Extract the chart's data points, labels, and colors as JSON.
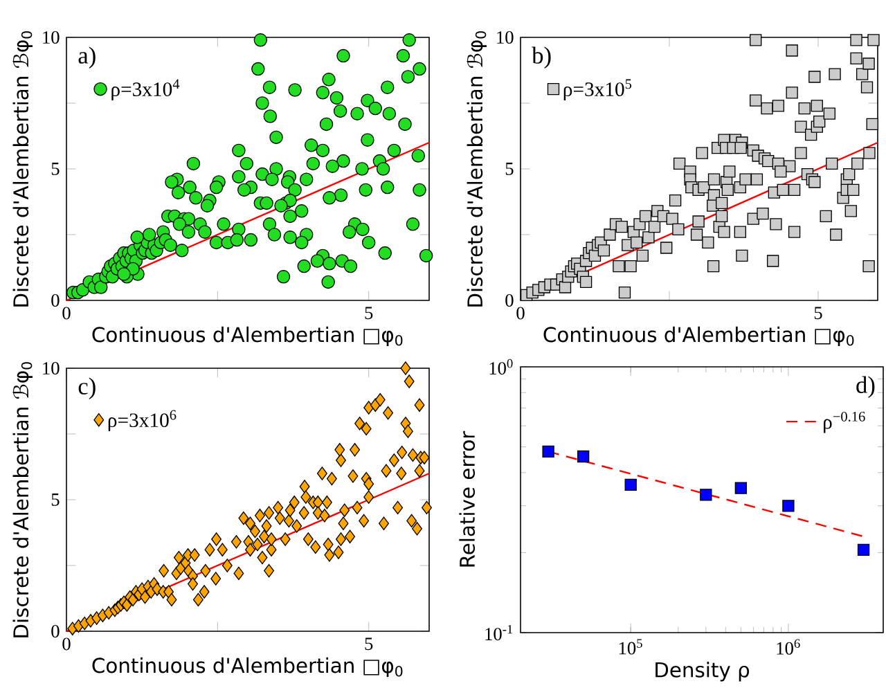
{
  "chart_data": [
    {
      "type": "scatter",
      "xlabel": "Continuous d'Alembertian □φ$_{0}$",
      "ylabel": "Discrete d'Alembertian ℬφ$_{0}$",
      "xlim": [
        0,
        6
      ],
      "ylim": [
        0,
        10
      ],
      "xticks": [
        0,
        {
          "value": 2.5,
          "label": null
        },
        5
      ],
      "yticks": [
        0,
        {
          "value": 2.5,
          "label": null
        },
        5,
        {
          "value": 7.5,
          "label": null
        },
        10
      ],
      "legend": "top left",
      "annotations": [
        "a)"
      ],
      "series": [
        {
          "name": "ρ=3x10$^{4}$",
          "marker": "circle",
          "color": "#22dd22",
          "x": [
            0.11,
            0.19,
            0.27,
            0.38,
            0.46,
            0.53,
            0.57,
            0.65,
            0.69,
            0.73,
            0.76,
            0.8,
            0.84,
            0.88,
            0.92,
            0.95,
            0.99,
            1.03,
            1.07,
            1.11,
            1.15,
            1.18,
            1.22,
            1.26,
            1.3,
            1.34,
            1.41,
            1.45,
            1.49,
            1.56,
            4.58,
            3.17,
            3.21,
            5.67,
            5.57,
            5.84,
            5.65,
            5.31,
            4.34,
            4.24,
            3.78,
            3.36,
            3.24,
            4.47,
            4.53,
            4.81,
            4.98,
            5.11,
            5.34,
            5.6,
            4.3,
            3.37,
            3.47,
            4.98,
            4.05,
            4.24,
            5.42,
            5.82,
            2.85,
            2.1,
            2.98,
            4.58,
            4.08,
            4.4,
            5.18,
            5.24,
            4.89,
            3.47,
            3.69,
            3.24,
            3.97,
            2.85,
            1.83,
            1.74,
            2.04,
            2.52,
            2.48,
            3.05,
            2.94,
            3.4,
            3.66,
            3.78,
            4.54,
            4.95,
            5.31,
            5.84,
            1.85,
            2.14,
            2.37,
            2.33,
            3.63,
            3.21,
            3.31,
            3.7,
            4.35,
            3.55,
            3.89,
            3.7,
            1.68,
            1.79,
            1.95,
            2.02,
            1.87,
            2.21,
            2.6,
            3.36,
            4.77,
            5.73,
            2.02,
            2.29,
            1.6,
            2.85,
            3.44,
            3.97,
            4.68,
            4.9,
            1.37,
            3.7,
            1.64,
            1.72,
            2.48,
            2.67,
            2.82,
            3.05,
            3.89,
            5.0,
            1.17,
            1.91,
            5.27,
            5.95,
            4.24,
            4.15,
            3.93,
            4.35,
            4.56,
            4.7,
            3.59,
            4.33,
            1.0,
            1.1,
            0.95
          ],
          "values": [
            0.3,
            0.3,
            0.4,
            0.7,
            0.5,
            0.8,
            0.5,
            0.9,
            1.1,
            1.3,
            0.9,
            1.4,
            1.2,
            1.6,
            1.3,
            1.8,
            1.5,
            1.8,
            1.6,
            1.9,
            1.5,
            1.0,
            2.1,
            1.8,
            1.9,
            2.2,
            1.8,
            2.1,
            1.9,
            2.2,
            9.3,
            8.8,
            9.9,
            9.9,
            9.3,
            8.8,
            8.5,
            8.1,
            8.4,
            7.9,
            8.0,
            8.1,
            7.5,
            7.7,
            7.2,
            7.1,
            7.6,
            7.3,
            7.1,
            6.7,
            6.7,
            7.0,
            6.2,
            6.1,
            5.9,
            5.7,
            5.7,
            5.5,
            5.7,
            5.2,
            5.2,
            5.3,
            5.2,
            5.1,
            5.3,
            5.0,
            5.0,
            5.0,
            4.7,
            4.8,
            4.6,
            4.7,
            4.6,
            4.5,
            4.3,
            4.5,
            4.3,
            4.3,
            4.2,
            4.6,
            4.5,
            4.2,
            4.0,
            4.2,
            4.3,
            4.2,
            4.1,
            3.9,
            3.8,
            3.6,
            3.7,
            3.7,
            3.7,
            3.8,
            3.9,
            3.6,
            3.4,
            3.2,
            3.2,
            3.2,
            3.1,
            3.1,
            2.9,
            2.9,
            2.9,
            2.9,
            2.9,
            2.9,
            2.6,
            2.6,
            2.6,
            2.7,
            2.5,
            2.5,
            2.6,
            2.7,
            2.5,
            2.4,
            2.3,
            2.1,
            2.2,
            2.2,
            2.3,
            2.3,
            2.2,
            2.2,
            2.4,
            1.9,
            1.8,
            1.7,
            1.7,
            1.5,
            1.3,
            1.4,
            1.5,
            1.3,
            0.9,
            0.7,
            0.9,
            1.2,
            1.0
          ]
        },
        {
          "type": "line",
          "color": "#ff0000",
          "line_style": "solid",
          "x": [
            0,
            6
          ],
          "values": [
            0,
            6
          ]
        }
      ]
    },
    {
      "type": "scatter",
      "xlabel": "Continuous d'Alembertian □φ$_{0}$",
      "ylabel": "Discrete d'Alembertian ℬφ$_{0}$",
      "xlim": [
        0,
        6
      ],
      "ylim": [
        0,
        10
      ],
      "xticks": [
        0,
        {
          "value": 2.5,
          "label": null
        },
        5
      ],
      "yticks": [
        0,
        {
          "value": 2.5,
          "label": null
        },
        5,
        {
          "value": 7.5,
          "label": null
        },
        10
      ],
      "legend": "top left",
      "annotations": [
        "b)"
      ],
      "series": [
        {
          "name": "ρ=3x10$^{5}$",
          "marker": "square",
          "color": "#cccccc",
          "x": [
            0.1,
            0.2,
            0.3,
            0.4,
            0.5,
            0.6,
            0.7,
            0.75,
            0.8,
            0.85,
            0.9,
            0.95,
            1.0,
            1.05,
            1.1,
            1.1,
            1.15,
            1.2,
            1.25,
            1.3,
            1.35,
            1.4,
            1.5,
            1.6,
            1.65,
            1.7,
            1.75,
            1.8,
            1.85,
            1.9,
            1.95,
            2.0,
            2.05,
            2.1,
            2.15,
            2.25,
            2.3,
            2.4,
            2.45,
            2.55,
            2.6,
            2.65,
            2.67,
            2.85,
            2.85,
            2.87,
            3.05,
            2.99,
            3.08,
            2.99,
            2.96,
            3.15,
            3.24,
            3.25,
            3.25,
            3.23,
            3.31,
            3.42,
            3.61,
            3.72,
            3.45,
            3.57,
            3.7,
            3.34,
            3.38,
            3.38,
            3.46,
            3.51,
            3.48,
            3.69,
            3.42,
            3.69,
            3.72,
            3.78,
            3.97,
            3.91,
            4.07,
            3.95,
            3.95,
            4.14,
            4.33,
            3.91,
            3.99,
            4.1,
            4.16,
            4.33,
            4.52,
            4.26,
            4.41,
            4.6,
            4.37,
            4.29,
            4.24,
            4.56,
            4.56,
            4.6,
            4.71,
            4.77,
            4.71,
            4.82,
            4.9,
            4.94,
            4.88,
            4.98,
            5.02,
            4.94,
            4.98,
            5.19,
            5.13,
            5.28,
            5.23,
            5.3,
            5.42,
            5.48,
            5.52,
            5.48,
            5.55,
            5.59,
            5.66,
            5.64,
            5.64,
            5.74,
            5.85,
            5.82,
            5.93,
            5.91,
            5.86,
            5.85
          ],
          "values": [
            0.2,
            0.3,
            0.4,
            0.5,
            0.6,
            0.6,
            0.8,
            0.5,
            0.9,
            1.1,
            1.3,
            1.4,
            1.2,
            0.9,
            0.7,
            1.5,
            1.8,
            2.0,
            1.7,
            2.1,
            2.2,
            1.9,
            2.5,
            2.9,
            1.3,
            2.8,
            0.3,
            2.1,
            1.3,
            2.6,
            2.2,
            2.9,
            1.7,
            3.2,
            2.4,
            2.8,
            3.4,
            3.2,
            2.0,
            3.1,
            3.8,
            2.7,
            5.2,
            4.9,
            4.6,
            4.3,
            5.6,
            4.2,
            4.3,
            3.0,
            2.5,
            2.2,
            1.3,
            4.6,
            4.0,
            3.6,
            5.8,
            6.1,
            6.1,
            6.0,
            5.8,
            5.8,
            5.8,
            2.8,
            3.7,
            3.2,
            4.5,
            4.9,
            4.2,
            4.3,
            2.6,
            2.6,
            1.7,
            4.6,
            4.6,
            3.1,
            3.3,
            9.9,
            7.6,
            7.3,
            7.4,
            5.7,
            5.5,
            5.4,
            5.3,
            5.2,
            5.1,
            4.1,
            4.2,
            4.2,
            4.9,
            2.9,
            1.5,
            9.5,
            7.9,
            2.6,
            6.6,
            7.3,
            5.6,
            4.8,
            4.6,
            4.5,
            6.3,
            6.6,
            6.8,
            8.5,
            7.4,
            7.1,
            3.2,
            8.6,
            5.2,
            2.5,
            3.9,
            4.6,
            4.8,
            4.2,
            3.4,
            4.2,
            5.2,
            9.9,
            9.2,
            8.6,
            9.0,
            8.1,
            9.9,
            6.7,
            5.6,
            1.3
          ]
        },
        {
          "type": "line",
          "color": "#ff0000",
          "line_style": "solid",
          "x": [
            0,
            6
          ],
          "values": [
            0,
            6
          ]
        }
      ]
    },
    {
      "type": "scatter",
      "xlabel": "Continuous d'Alembertian □φ$_{0}$",
      "ylabel": "Discrete d'Alembertian ℬφ$_{0}$",
      "xlim": [
        0,
        6
      ],
      "ylim": [
        0,
        10
      ],
      "xticks": [
        0,
        {
          "value": 2.5,
          "label": null
        },
        5
      ],
      "yticks": [
        0,
        {
          "value": 2.5,
          "label": null
        },
        5,
        {
          "value": 7.5,
          "label": null
        },
        10
      ],
      "legend": "top left",
      "annotations": [
        "c)"
      ],
      "series": [
        {
          "name": "ρ=3x10$^{6}$",
          "marker": "diamond",
          "color": "#ffa500",
          "x": [
            0.1,
            0.2,
            0.3,
            0.4,
            0.5,
            0.6,
            0.7,
            0.8,
            0.85,
            0.9,
            0.95,
            1.0,
            1.05,
            1.1,
            1.15,
            1.2,
            1.25,
            1.3,
            1.35,
            1.4,
            1.45,
            1.5,
            1.6,
            1.61,
            1.69,
            1.74,
            1.86,
            1.82,
            1.89,
            1.97,
            2.01,
            2.02,
            2.09,
            2.12,
            2.09,
            2.18,
            2.28,
            2.3,
            2.37,
            2.47,
            2.48,
            2.58,
            2.66,
            2.81,
            2.85,
            2.93,
            3.01,
            3.04,
            3.12,
            3.04,
            3.16,
            3.2,
            3.24,
            3.27,
            3.31,
            3.35,
            3.39,
            3.39,
            3.35,
            3.5,
            3.53,
            3.62,
            3.68,
            3.7,
            3.77,
            3.81,
            3.93,
            3.94,
            3.96,
            4.0,
            4.08,
            4.16,
            4.16,
            4.12,
            4.23,
            4.27,
            4.31,
            4.33,
            4.35,
            4.39,
            4.54,
            4.52,
            4.58,
            4.6,
            4.54,
            4.5,
            4.69,
            4.74,
            4.77,
            4.81,
            4.85,
            4.92,
            4.96,
            5.0,
            5.0,
            4.96,
            5.0,
            5.11,
            5.19,
            5.32,
            5.29,
            5.25,
            5.42,
            5.48,
            5.54,
            5.55,
            5.61,
            5.65,
            5.61,
            5.67,
            5.71,
            5.73,
            5.8,
            5.84,
            5.84,
            5.86,
            5.92,
            5.96
          ],
          "values": [
            0.1,
            0.2,
            0.3,
            0.4,
            0.5,
            0.6,
            0.7,
            0.8,
            0.9,
            1.0,
            1.1,
            1.0,
            1.3,
            1.2,
            1.5,
            1.4,
            1.6,
            1.3,
            1.7,
            1.5,
            1.8,
            1.6,
            1.5,
            2.3,
            1.5,
            1.2,
            2.8,
            2.2,
            2.4,
            2.6,
            2.9,
            2.3,
            2.1,
            2.9,
            1.8,
            1.2,
            1.5,
            2.3,
            3.1,
            2.0,
            3.5,
            3.1,
            2.5,
            3.4,
            2.2,
            4.3,
            3.4,
            4.1,
            3.8,
            3.1,
            3.3,
            4.4,
            2.8,
            3.6,
            4.0,
            2.3,
            3.1,
            3.5,
            4.5,
            4.7,
            4.3,
            3.5,
            4.2,
            4.6,
            4.9,
            4.0,
            4.5,
            5.5,
            5.1,
            3.5,
            4.9,
            4.9,
            4.5,
            3.2,
            6.0,
            4.4,
            4.9,
            3.3,
            2.9,
            5.8,
            6.5,
            6.9,
            4.1,
            4.6,
            3.5,
            3.0,
            3.6,
            5.9,
            6.9,
            4.7,
            7.9,
            4.2,
            5.8,
            5.1,
            5.6,
            7.7,
            8.5,
            8.6,
            8.8,
            8.3,
            6.1,
            4.1,
            6.5,
            4.7,
            6.0,
            6.8,
            7.9,
            7.6,
            10.0,
            9.5,
            4.2,
            6.7,
            3.9,
            8.6,
            6.1,
            6.6,
            6.6,
            4.7
          ]
        },
        {
          "type": "line",
          "color": "#ff0000",
          "line_style": "solid",
          "x": [
            0,
            6
          ],
          "values": [
            0,
            6
          ]
        }
      ]
    },
    {
      "type": "scatter",
      "xlabel": "Density ρ",
      "ylabel": "Relative error",
      "log": "xy",
      "xlim": [
        20000,
        4000000
      ],
      "ylim": [
        0.1,
        1
      ],
      "xticks": [
        {
          "value": 100000,
          "label": "10$^{5}$"
        },
        {
          "value": 1000000,
          "label": "10$^{6}$"
        }
      ],
      "yticks": [
        {
          "value": 0.1,
          "label": "10$^{-1}$"
        },
        {
          "value": 1,
          "label": "10$^{0}$"
        }
      ],
      "legend": "top right",
      "annotations": [
        "d)"
      ],
      "series": [
        {
          "marker": "square",
          "color": "#0000ff",
          "x": [
            30000,
            50000,
            100000,
            300000,
            500000,
            1000000,
            3000000
          ],
          "values": [
            0.48,
            0.46,
            0.36,
            0.33,
            0.35,
            0.3,
            0.205
          ]
        },
        {
          "name": "ρ$^{−0.16}$",
          "type": "line",
          "color": "#ff0000",
          "line_style": "dashed",
          "x": [
            30000,
            3000000
          ],
          "values": [
            0.48,
            0.23
          ]
        }
      ]
    }
  ]
}
